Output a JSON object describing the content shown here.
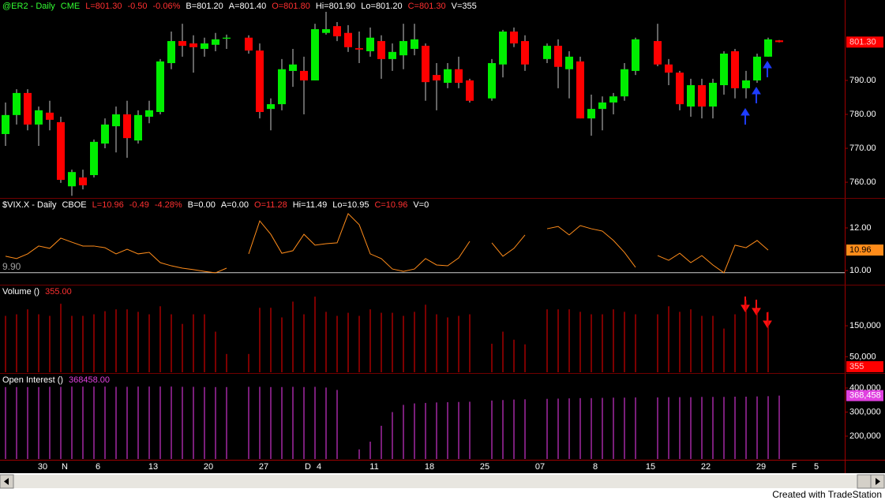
{
  "chart_data": [
    {
      "type": "candlestick",
      "header": [
        {
          "text": "@ER2 - Daily",
          "color": "#33ff33"
        },
        {
          "text": "CME",
          "color": "#33ff33"
        },
        {
          "text": "L=801.30",
          "color": "#ff3030"
        },
        {
          "text": "-0.50",
          "color": "#ff3030"
        },
        {
          "text": "-0.06%",
          "color": "#ff3030"
        },
        {
          "text": "B=801.20",
          "color": "#ffffff"
        },
        {
          "text": "A=801.40",
          "color": "#ffffff"
        },
        {
          "text": "O=801.80",
          "color": "#ff3030"
        },
        {
          "text": "Hi=801.90",
          "color": "#ffffff"
        },
        {
          "text": "Lo=801.20",
          "color": "#ffffff"
        },
        {
          "text": "C=801.30",
          "color": "#ff3030"
        },
        {
          "text": "V=355",
          "color": "#ffffff"
        }
      ],
      "categories": [
        null,
        null,
        null,
        "30",
        null,
        "N",
        null,
        null,
        "6",
        null,
        null,
        null,
        null,
        "13",
        null,
        null,
        null,
        null,
        "20",
        null,
        null,
        null,
        null,
        "27",
        null,
        null,
        null,
        "D",
        "4",
        null,
        null,
        null,
        null,
        "11",
        null,
        null,
        null,
        null,
        "18",
        null,
        null,
        null,
        null,
        "25",
        null,
        null,
        null,
        null,
        "07",
        null,
        null,
        null,
        null,
        "8",
        null,
        null,
        null,
        null,
        "15",
        null,
        null,
        null,
        null,
        "22",
        null,
        null,
        null,
        null,
        "29",
        null,
        null,
        "F",
        null,
        "5",
        null,
        null
      ],
      "open": [
        774.2,
        779.8,
        786.3,
        777.0,
        780.5,
        777.7,
        758.8,
        761.4,
        762.1,
        771.4,
        776.5,
        780.0,
        772.3,
        779.3,
        780.7,
        795.1,
        801.6,
        800.9,
        799.3,
        800.5,
        802.3,
        null,
        802.6,
        798.8,
        781.6,
        783.0,
        792.8,
        792.8,
        790.0,
        804.0,
        806.0,
        804.0,
        799.5,
        798.6,
        801.6,
        796.3,
        797.4,
        799.3,
        800.2,
        791.6,
        789.3,
        793.3,
        790.0,
        null,
        784.7,
        794.7,
        804.4,
        801.6,
        null,
        796.3,
        800.2,
        793.3,
        795.6,
        778.8,
        781.6,
        783.5,
        785.3,
        792.8,
        null,
        801.6,
        794.7,
        792.3,
        782.3,
        788.6,
        782.3,
        788.6,
        798.6,
        787.7,
        790.0,
        797.0,
        801.8,
        null,
        null,
        null,
        null,
        null
      ],
      "high": [
        783.5,
        787.4,
        787.4,
        782.3,
        784.0,
        779.3,
        763.7,
        763.7,
        772.6,
        778.8,
        782.3,
        784.0,
        781.2,
        784.0,
        796.3,
        804.4,
        806.7,
        803.3,
        802.6,
        804.0,
        803.5,
        null,
        803.3,
        800.9,
        784.7,
        796.3,
        799.3,
        797.0,
        806.7,
        810.2,
        807.2,
        806.3,
        804.4,
        805.6,
        803.3,
        800.9,
        806.7,
        806.7,
        800.9,
        795.1,
        795.1,
        797.0,
        790.5,
        null,
        796.3,
        804.9,
        805.6,
        803.3,
        null,
        800.9,
        802.1,
        798.6,
        797.0,
        785.8,
        785.3,
        786.3,
        795.1,
        802.6,
        null,
        806.7,
        796.3,
        792.8,
        790.5,
        790.5,
        790.5,
        798.6,
        799.3,
        792.8,
        797.9,
        802.6,
        801.9,
        null,
        null,
        null,
        null,
        null
      ],
      "low": [
        770.7,
        777.0,
        775.3,
        770.7,
        775.3,
        759.8,
        756.0,
        757.9,
        761.4,
        770.0,
        768.8,
        767.2,
        771.4,
        777.4,
        780.0,
        793.3,
        797.0,
        792.3,
        797.0,
        798.6,
        799.3,
        null,
        797.9,
        778.8,
        775.3,
        781.2,
        788.1,
        780.0,
        790.0,
        803.5,
        801.6,
        798.4,
        795.1,
        797.0,
        790.5,
        792.8,
        793.3,
        797.4,
        784.0,
        781.2,
        787.7,
        787.7,
        783.5,
        null,
        784.0,
        790.9,
        799.8,
        792.8,
        null,
        795.1,
        787.7,
        784.7,
        778.8,
        773.7,
        775.3,
        780.0,
        784.0,
        791.6,
        null,
        794.2,
        788.6,
        781.2,
        779.3,
        778.8,
        778.8,
        785.8,
        784.7,
        784.7,
        789.3,
        797.0,
        801.2,
        null,
        null,
        null,
        null,
        null
      ],
      "close": [
        779.8,
        786.3,
        777.0,
        781.2,
        778.4,
        760.7,
        763.0,
        759.1,
        771.9,
        777.0,
        780.0,
        773.0,
        779.8,
        781.2,
        795.6,
        801.6,
        800.2,
        799.8,
        800.9,
        802.1,
        802.6,
        null,
        798.8,
        780.7,
        783.0,
        793.3,
        794.7,
        790.0,
        805.1,
        805.1,
        803.0,
        799.8,
        799.1,
        802.6,
        796.3,
        798.4,
        801.6,
        802.1,
        789.5,
        790.0,
        793.3,
        789.3,
        784.0,
        null,
        795.1,
        804.4,
        800.9,
        794.7,
        null,
        800.2,
        794.0,
        797.0,
        778.8,
        781.6,
        783.5,
        785.3,
        793.3,
        802.1,
        null,
        794.7,
        792.3,
        783.0,
        788.6,
        782.3,
        789.3,
        797.9,
        787.7,
        790.0,
        797.0,
        802.1,
        801.3,
        null,
        null,
        null,
        null,
        null
      ],
      "up_color": "#00ee00",
      "down_color": "#ff0000",
      "ylim": [
        755.6,
        813.7
      ],
      "yticks": [
        {
          "value": 760,
          "label": "760.00"
        },
        {
          "value": 770,
          "label": "770.00"
        },
        {
          "value": 780,
          "label": "780.00"
        },
        {
          "value": 790,
          "label": "790.00"
        }
      ],
      "last_label": {
        "value": 801.3,
        "label": "801.30",
        "color": "#ff0000",
        "text_color": "#ffcccc"
      }
    },
    {
      "type": "line",
      "header": [
        {
          "text": "$VIX.X - Daily",
          "color": "#ffffff"
        },
        {
          "text": "CBOE",
          "color": "#ffffff"
        },
        {
          "text": "L=10.96",
          "color": "#ff3030"
        },
        {
          "text": "-0.49",
          "color": "#ff3030"
        },
        {
          "text": "-4.28%",
          "color": "#ff3030"
        },
        {
          "text": "B=0.00",
          "color": "#ffffff"
        },
        {
          "text": "A=0.00",
          "color": "#ffffff"
        },
        {
          "text": "O=11.28",
          "color": "#ff3030"
        },
        {
          "text": "Hi=11.49",
          "color": "#ffffff"
        },
        {
          "text": "Lo=10.95",
          "color": "#ffffff"
        },
        {
          "text": "C=10.96",
          "color": "#ff3030"
        },
        {
          "text": "V=0",
          "color": "#ffffff"
        }
      ],
      "values": [
        10.67,
        10.56,
        10.78,
        11.15,
        11.04,
        11.52,
        11.33,
        11.15,
        11.15,
        11.07,
        10.78,
        11.0,
        10.78,
        10.85,
        10.37,
        10.22,
        10.11,
        10.04,
        9.96,
        9.89,
        10.11,
        null,
        10.78,
        12.33,
        11.7,
        10.81,
        10.93,
        11.7,
        11.19,
        11.26,
        11.3,
        12.67,
        12.15,
        10.78,
        10.56,
        10.07,
        9.96,
        10.07,
        10.56,
        10.26,
        10.22,
        10.59,
        11.37,
        null,
        11.3,
        10.67,
        11.04,
        11.67,
        null,
        11.96,
        12.07,
        11.67,
        12.11,
        11.96,
        11.85,
        11.41,
        10.85,
        10.15,
        null,
        10.7,
        10.48,
        10.81,
        10.37,
        10.7,
        10.26,
        9.89,
        11.19,
        11.07,
        11.41,
        10.96,
        null,
        null,
        null,
        null,
        null,
        null
      ],
      "color": "#ff8c1a",
      "ylim": [
        9.37,
        13.37
      ],
      "yticks": [
        {
          "value": 10,
          "label": "10.00"
        },
        {
          "value": 12,
          "label": "12.00"
        }
      ],
      "hline": {
        "value": 9.9,
        "label": "9.90"
      },
      "last_label": {
        "value": 10.96,
        "label": "10.96",
        "color": "#ff8c1a",
        "text_color": "#000000"
      }
    },
    {
      "type": "bar",
      "header": [
        {
          "text": "Volume ()",
          "color": "#ffffff"
        },
        {
          "text": "355.00",
          "color": "#ff3030"
        }
      ],
      "values": [
        182000,
        187000,
        203000,
        187000,
        182000,
        221000,
        182000,
        182000,
        187000,
        197000,
        203000,
        203000,
        195000,
        187000,
        213000,
        187000,
        156000,
        187000,
        187000,
        131000,
        59000,
        null,
        59000,
        208000,
        208000,
        177000,
        228000,
        187000,
        244000,
        195000,
        182000,
        192000,
        182000,
        203000,
        192000,
        192000,
        182000,
        195000,
        218000,
        187000,
        177000,
        182000,
        187000,
        null,
        92000,
        131000,
        105000,
        90000,
        null,
        203000,
        203000,
        203000,
        195000,
        187000,
        187000,
        203000,
        195000,
        187000,
        null,
        187000,
        213000,
        195000,
        203000,
        182000,
        182000,
        141000,
        187000,
        233000,
        203000,
        195000,
        355,
        null,
        null,
        null,
        null,
        null
      ],
      "color": "#d00000",
      "ylim": [
        0,
        280000
      ],
      "yticks": [
        {
          "value": 50000,
          "label": "50,000"
        },
        {
          "value": 150000,
          "label": "150,000"
        }
      ],
      "last_label": {
        "value": 355,
        "label": "355",
        "color": "#ff0000",
        "text_color": "#ffcccc"
      }
    },
    {
      "type": "bar",
      "header": [
        {
          "text": "Open Interest ()",
          "color": "#ffffff"
        },
        {
          "text": "368458.00",
          "color": "#e040e0"
        }
      ],
      "values": [
        404000,
        404000,
        404000,
        404000,
        405000,
        405000,
        406000,
        406000,
        406000,
        406000,
        405000,
        405000,
        406000,
        406000,
        406000,
        406000,
        405000,
        405000,
        404000,
        404000,
        404000,
        null,
        405000,
        405000,
        404000,
        404000,
        405000,
        404000,
        405000,
        402000,
        392000,
        null,
        145000,
        177000,
        243000,
        300000,
        330000,
        336000,
        338000,
        340000,
        341000,
        342000,
        343000,
        null,
        348000,
        350000,
        352000,
        353000,
        null,
        355000,
        356000,
        357000,
        358000,
        358000,
        359000,
        360000,
        360000,
        361000,
        null,
        361000,
        362000,
        362000,
        362000,
        363000,
        363000,
        363000,
        364000,
        364000,
        365000,
        366000,
        368458,
        null,
        null,
        null,
        null,
        null
      ],
      "color": "#cc33cc",
      "ylim": [
        105000,
        459000
      ],
      "yticks": [
        {
          "value": 200000,
          "label": "200,000"
        },
        {
          "value": 300000,
          "label": "300,000"
        },
        {
          "value": 400000,
          "label": "400,000"
        }
      ],
      "last_label": {
        "value": 368458,
        "label": "368,458",
        "color": "#e040e0",
        "text_color": "#ffffff"
      }
    }
  ],
  "footer": "Created with TradeStation"
}
